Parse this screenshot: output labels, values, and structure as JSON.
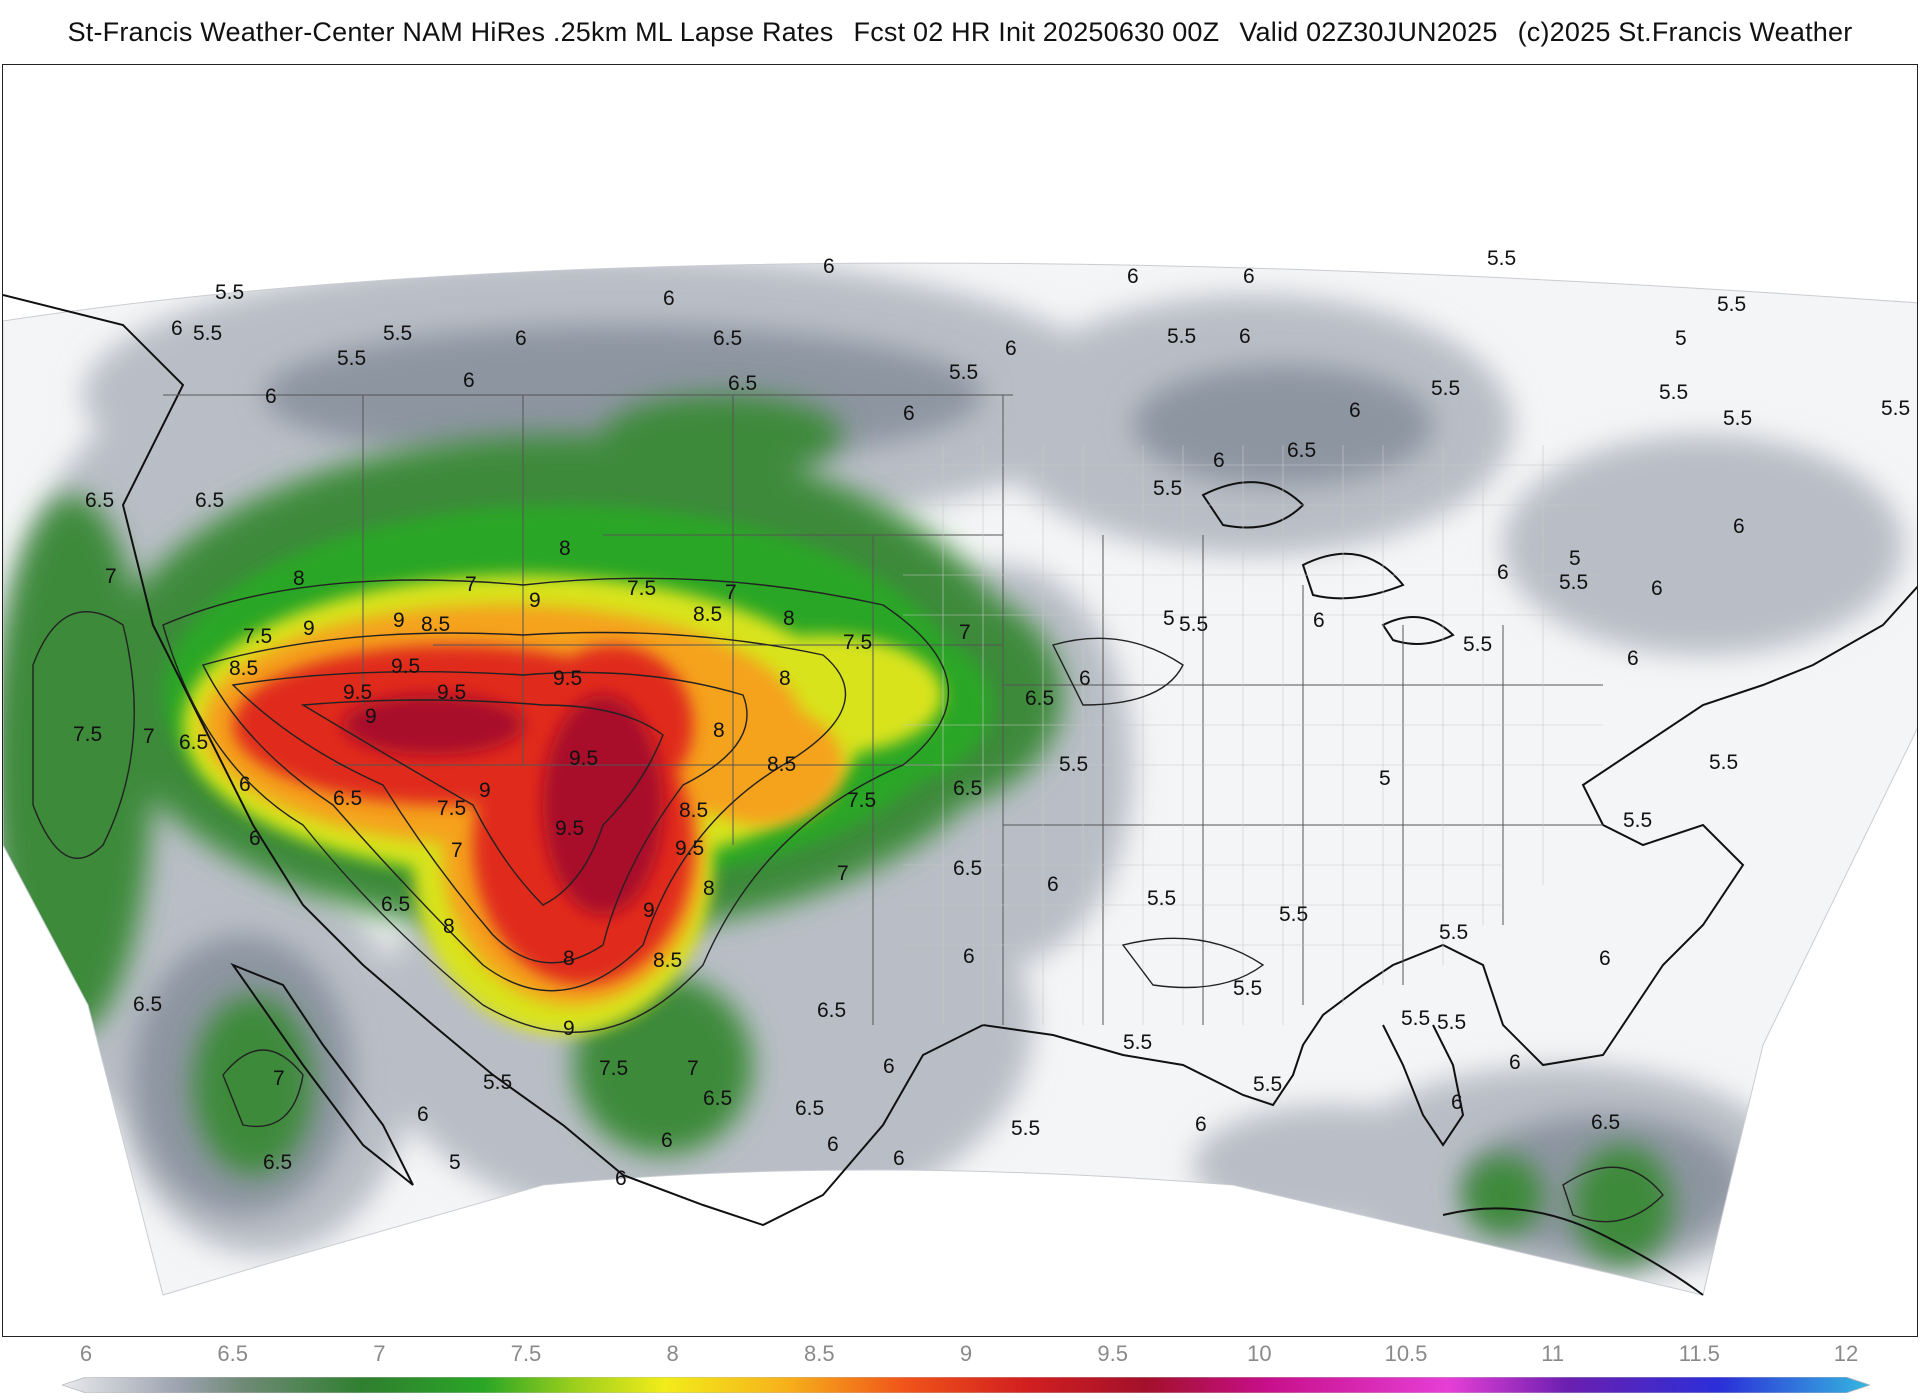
{
  "header": {
    "product": "St-Francis Weather-Center NAM HiRes .25km ML Lapse Rates",
    "forecast": "Fcst 02 HR Init 20250630 00Z",
    "valid": "Valid 02Z30JUN2025",
    "copyright": "(c)2025 St.Francis Weather"
  },
  "colorbar": {
    "ticks": [
      "6",
      "6.5",
      "7",
      "7.5",
      "8",
      "8.5",
      "9",
      "9.5",
      "10",
      "10.5",
      "11",
      "11.5",
      "12"
    ],
    "min": 6,
    "max": 12,
    "stops": [
      {
        "value": 6.0,
        "color": "#e8e9ec"
      },
      {
        "value": 6.4,
        "color": "#9aa1ad"
      },
      {
        "value": 6.6,
        "color": "#6f8a76"
      },
      {
        "value": 7.0,
        "color": "#2f7f2f"
      },
      {
        "value": 7.4,
        "color": "#2aa626"
      },
      {
        "value": 7.7,
        "color": "#9ccf1c"
      },
      {
        "value": 8.0,
        "color": "#f2ec1a"
      },
      {
        "value": 8.4,
        "color": "#f6b21b"
      },
      {
        "value": 8.8,
        "color": "#f0531a"
      },
      {
        "value": 9.2,
        "color": "#d21f1f"
      },
      {
        "value": 9.6,
        "color": "#a3102b"
      },
      {
        "value": 10.0,
        "color": "#c70f8a"
      },
      {
        "value": 10.6,
        "color": "#e63fd6"
      },
      {
        "value": 11.0,
        "color": "#6a1fb0"
      },
      {
        "value": 11.5,
        "color": "#2b2fd8"
      },
      {
        "value": 12.0,
        "color": "#36b7e0"
      }
    ]
  },
  "map": {
    "contour_labels": [
      "5",
      "5.5",
      "6",
      "6.5",
      "7",
      "7.5",
      "8",
      "8.5",
      "9",
      "9.5"
    ]
  }
}
